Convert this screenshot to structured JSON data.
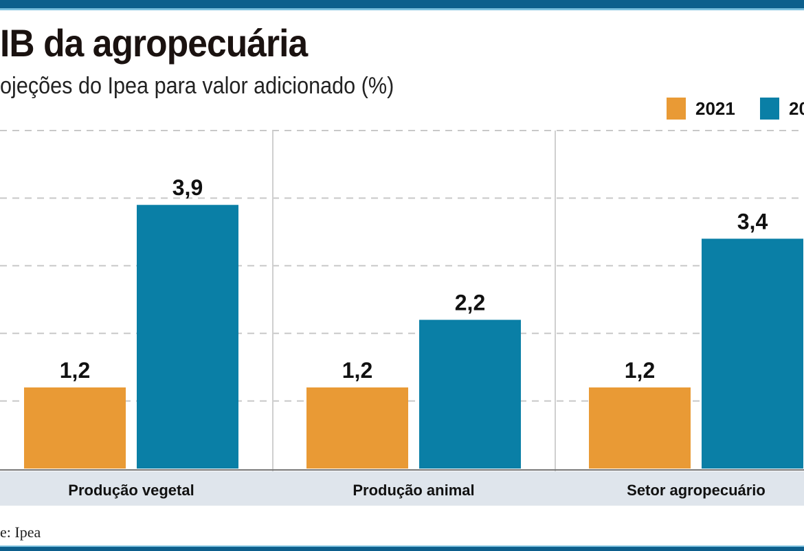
{
  "chart_data": {
    "type": "bar",
    "title": "IB da agropecuária",
    "subtitle": "ojeções do Ipea para valor adicionado (%)",
    "categories": [
      "Produção vegetal",
      "Produção animal",
      "Setor agropecuário"
    ],
    "series": [
      {
        "name": "2021",
        "color": "#e99a35",
        "values": [
          1.2,
          1.2,
          1.2
        ],
        "labels": [
          "1,2",
          "1,2",
          "1,2"
        ]
      },
      {
        "name": "20",
        "color": "#0a7fa6",
        "values": [
          3.9,
          2.2,
          3.4
        ],
        "labels": [
          "3,9",
          "2,2",
          "3,4"
        ]
      }
    ],
    "ylim": [
      0,
      5
    ],
    "grid": true,
    "legend": "top-right",
    "source": "e: Ipea"
  }
}
